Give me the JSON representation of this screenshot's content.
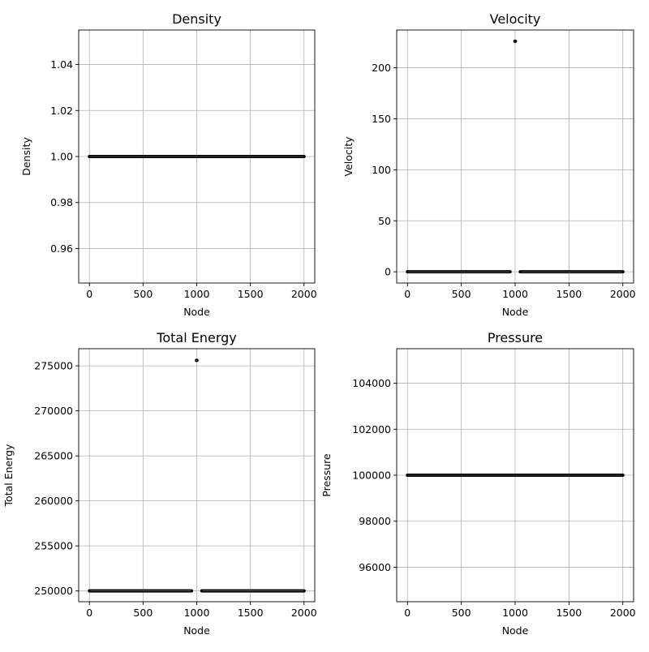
{
  "chart_data": [
    {
      "type": "scatter",
      "title": "Density",
      "xlabel": "Node",
      "ylabel": "Density",
      "xlim": [
        -100,
        2100
      ],
      "ylim": [
        0.945,
        1.055
      ],
      "xticks": [
        0,
        500,
        1000,
        1500,
        2000
      ],
      "xtick_labels": [
        "0",
        "500",
        "1000",
        "1500",
        "2000"
      ],
      "yticks": [
        0.96,
        0.98,
        1.0,
        1.02,
        1.04
      ],
      "ytick_labels": [
        "0.96",
        "0.98",
        "1.00",
        "1.02",
        "1.04"
      ],
      "grid": true,
      "marker_color": "#000000",
      "series": [
        {
          "segments": [
            {
              "x_start": 0,
              "x_end": 2000,
              "y": 1.0
            }
          ]
        }
      ]
    },
    {
      "type": "scatter",
      "title": "Velocity",
      "xlabel": "Node",
      "ylabel": "Velocity",
      "xlim": [
        -100,
        2100
      ],
      "ylim": [
        -11,
        237
      ],
      "xticks": [
        0,
        500,
        1000,
        1500,
        2000
      ],
      "xtick_labels": [
        "0",
        "500",
        "1000",
        "1500",
        "2000"
      ],
      "yticks": [
        0,
        50,
        100,
        150,
        200
      ],
      "ytick_labels": [
        "0",
        "50",
        "100",
        "150",
        "200"
      ],
      "grid": true,
      "marker_color": "#000000",
      "series": [
        {
          "segments": [
            {
              "x_start": 0,
              "x_end": 975,
              "y": 0
            },
            {
              "x_start": 975,
              "x_end": 1025,
              "y": 226
            },
            {
              "x_start": 1025,
              "x_end": 2000,
              "y": 0
            }
          ]
        }
      ]
    },
    {
      "type": "scatter",
      "title": "Total Energy",
      "xlabel": "Node",
      "ylabel": "Total Energy",
      "xlim": [
        -100,
        2100
      ],
      "ylim": [
        248800,
        276900
      ],
      "xticks": [
        0,
        500,
        1000,
        1500,
        2000
      ],
      "xtick_labels": [
        "0",
        "500",
        "1000",
        "1500",
        "2000"
      ],
      "yticks": [
        250000,
        255000,
        260000,
        265000,
        270000,
        275000
      ],
      "ytick_labels": [
        "250000",
        "255000",
        "260000",
        "265000",
        "270000",
        "275000"
      ],
      "grid": true,
      "marker_color": "#000000",
      "series": [
        {
          "segments": [
            {
              "x_start": 0,
              "x_end": 975,
              "y": 250000
            },
            {
              "x_start": 975,
              "x_end": 1025,
              "y": 275600
            },
            {
              "x_start": 1025,
              "x_end": 2000,
              "y": 250000
            }
          ]
        }
      ]
    },
    {
      "type": "scatter",
      "title": "Pressure",
      "xlabel": "Node",
      "ylabel": "Pressure",
      "xlim": [
        -100,
        2100
      ],
      "ylim": [
        94500,
        105500
      ],
      "xticks": [
        0,
        500,
        1000,
        1500,
        2000
      ],
      "xtick_labels": [
        "0",
        "500",
        "1000",
        "1500",
        "2000"
      ],
      "yticks": [
        96000,
        98000,
        100000,
        102000,
        104000
      ],
      "ytick_labels": [
        "96000",
        "98000",
        "100000",
        "102000",
        "104000"
      ],
      "grid": true,
      "marker_color": "#000000",
      "series": [
        {
          "segments": [
            {
              "x_start": 0,
              "x_end": 2000,
              "y": 100000
            }
          ]
        }
      ]
    }
  ]
}
